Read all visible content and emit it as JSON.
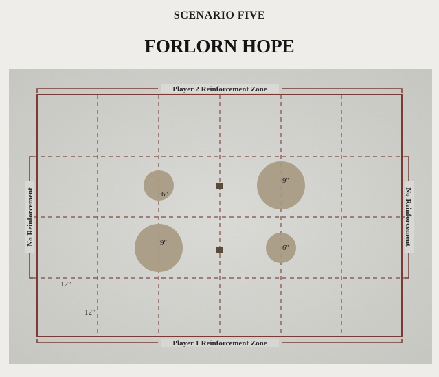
{
  "header": {
    "scenario": "SCENARIO FIVE",
    "title": "FORLORN HOPE"
  },
  "map": {
    "top_zone": "Player 2 Reinforcement Zone",
    "bottom_zone": "Player 1 Reinforcement Zone",
    "left_zone": "No Reinforcement",
    "right_zone": "No Reinforcement",
    "measure_horizontal": "12\"",
    "measure_vertical": "12\"",
    "objectives": [
      {
        "label": "6\""
      },
      {
        "label": "9\""
      },
      {
        "label": "9\""
      },
      {
        "label": "6\""
      }
    ],
    "colors": {
      "frame": "#7a3b36",
      "grid": "#7a3b36",
      "objective": "#a89a82",
      "marker": "#5a4a3a"
    }
  }
}
